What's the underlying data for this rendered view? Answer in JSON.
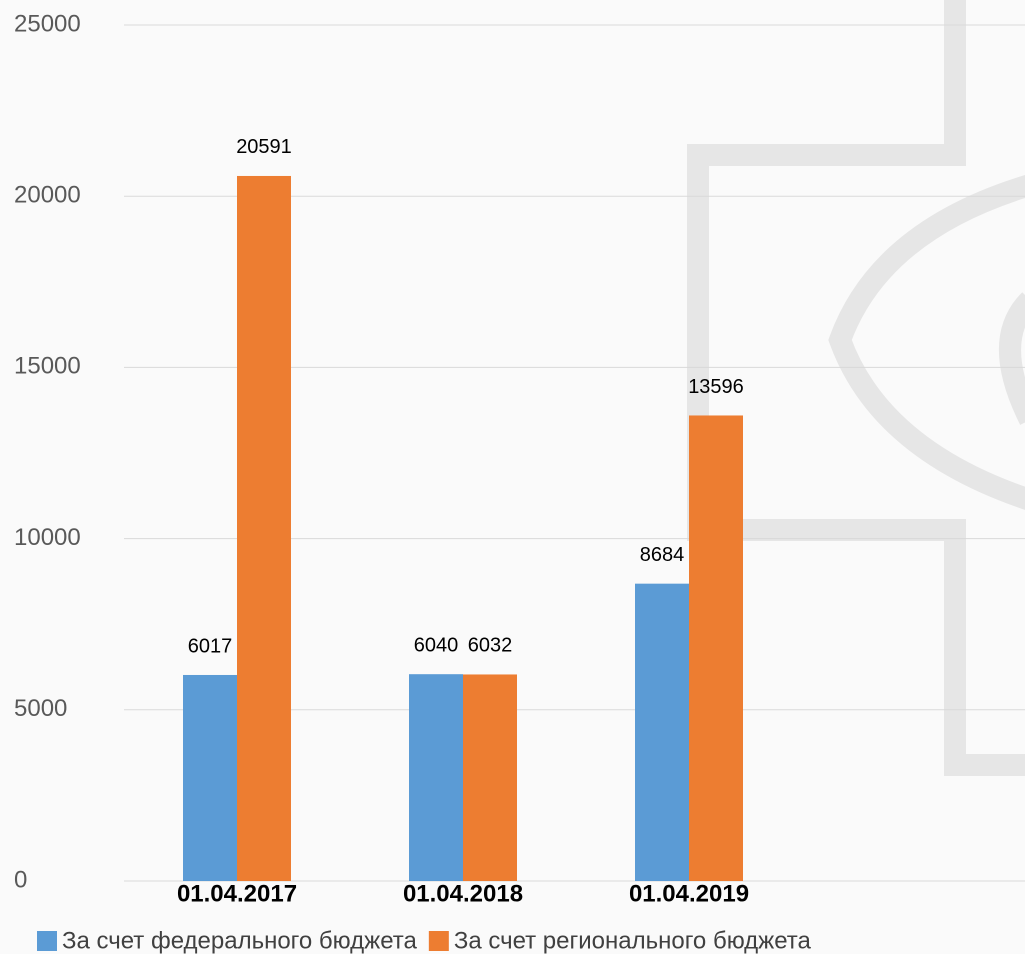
{
  "chart_data": {
    "type": "bar",
    "categories": [
      "01.04.2017",
      "01.04.2018",
      "01.04.2019"
    ],
    "series": [
      {
        "name": "За счет федерального бюджета",
        "color": "#5b9bd5",
        "values": [
          6017,
          6040,
          8684
        ]
      },
      {
        "name": "За счет регионального бюджета",
        "color": "#ed7d31",
        "values": [
          20591,
          6032,
          13596
        ]
      }
    ],
    "ylim": [
      0,
      25000
    ],
    "yticks": [
      0,
      5000,
      10000,
      15000,
      20000,
      25000
    ],
    "grid": true,
    "legend": "bottom"
  }
}
